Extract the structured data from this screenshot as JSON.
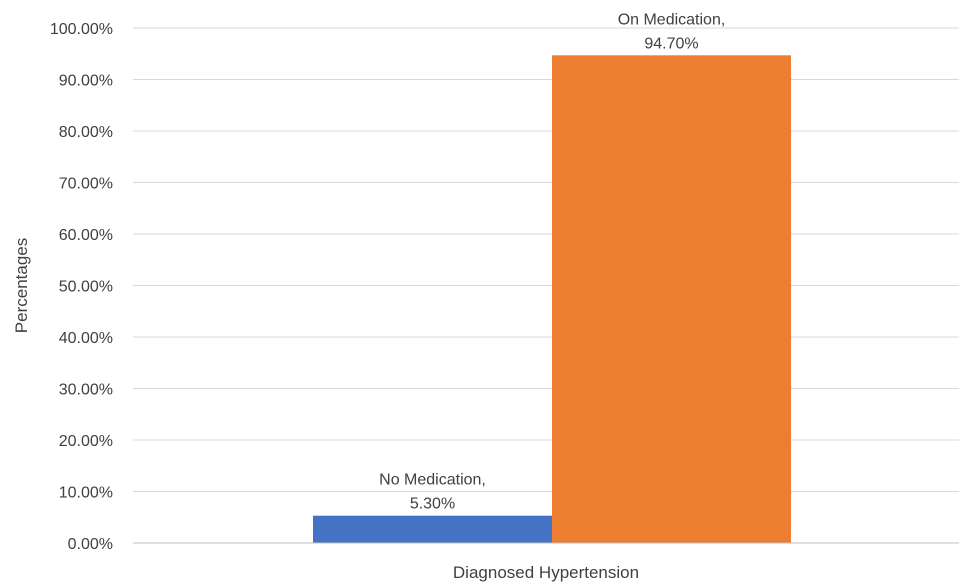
{
  "chart_data": {
    "type": "bar",
    "title": "",
    "xlabel": "Diagnosed Hypertension",
    "ylabel": "Percentages",
    "categories": [
      "Diagnosed Hypertension"
    ],
    "series": [
      {
        "name": "No Medication",
        "values": [
          5.3
        ],
        "color": "#4472c4",
        "label_line1": "No Medication,",
        "label_line2": "5.30%"
      },
      {
        "name": "On Medication",
        "values": [
          94.7
        ],
        "color": "#ed7d31",
        "label_line1": "On Medication,",
        "label_line2": "94.70%"
      }
    ],
    "ylim": [
      0,
      100
    ],
    "y_ticks": [
      {
        "value": 0,
        "label": "0.00%"
      },
      {
        "value": 10,
        "label": "10.00%"
      },
      {
        "value": 20,
        "label": "20.00%"
      },
      {
        "value": 30,
        "label": "30.00%"
      },
      {
        "value": 40,
        "label": "40.00%"
      },
      {
        "value": 50,
        "label": "50.00%"
      },
      {
        "value": 60,
        "label": "60.00%"
      },
      {
        "value": 70,
        "label": "70.00%"
      },
      {
        "value": 80,
        "label": "80.00%"
      },
      {
        "value": 90,
        "label": "90.00%"
      },
      {
        "value": 100,
        "label": "100.00%"
      }
    ],
    "grid": true,
    "legend": "none"
  }
}
